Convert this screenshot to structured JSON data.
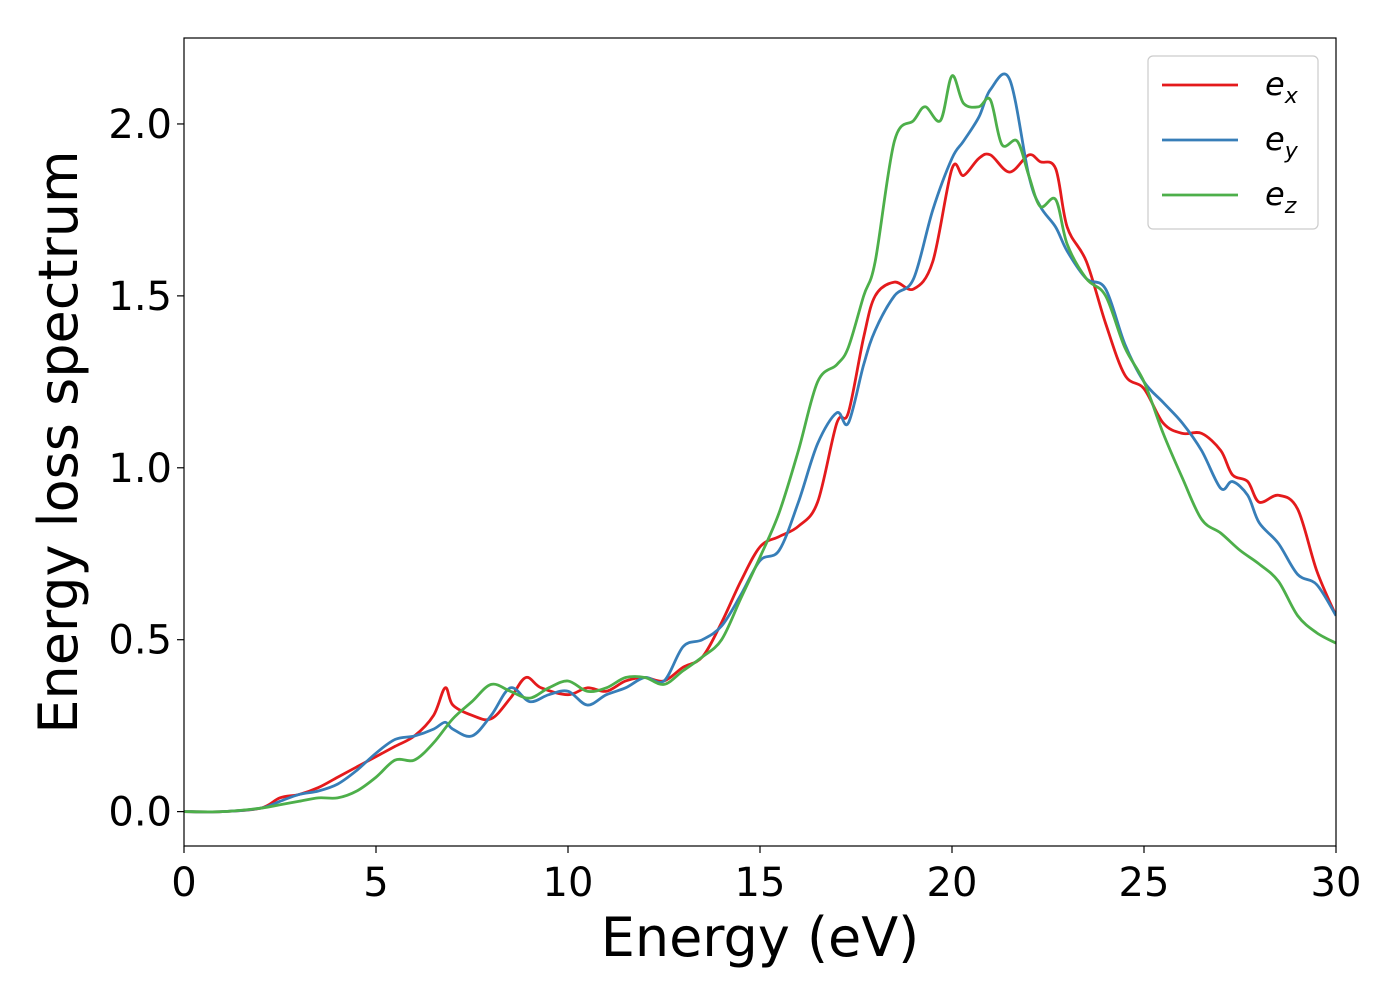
{
  "chart_data": {
    "type": "line",
    "title": "",
    "xlabel": "Energy (eV)",
    "ylabel": "Energy loss spectrum",
    "xlim": [
      0,
      30
    ],
    "ylim": [
      -0.1,
      2.25
    ],
    "xticks": [
      0,
      5,
      10,
      15,
      20,
      25,
      30
    ],
    "xtick_labels": [
      "0",
      "5",
      "10",
      "15",
      "20",
      "25",
      "30"
    ],
    "yticks": [
      0.0,
      0.5,
      1.0,
      1.5,
      2.0
    ],
    "ytick_labels": [
      "0.0",
      "0.5",
      "1.0",
      "1.5",
      "2.0"
    ],
    "grid": false,
    "legend_position": "top-right",
    "series": [
      {
        "name": "e_x",
        "label_base": "e",
        "label_sub": "x",
        "color": "#e41a1c",
        "x": [
          0,
          1,
          2,
          2.5,
          3,
          3.5,
          4,
          4.5,
          5,
          5.5,
          6,
          6.5,
          6.8,
          7,
          7.5,
          8,
          8.5,
          8.9,
          9.3,
          10,
          10.5,
          11,
          11.5,
          12,
          12.5,
          13,
          13.5,
          14,
          14.5,
          15,
          15.5,
          16,
          16.5,
          17,
          17.3,
          17.7,
          18,
          18.5,
          19,
          19.5,
          20,
          20.3,
          20.7,
          21,
          21.5,
          22,
          22.3,
          22.7,
          23,
          23.5,
          24,
          24.5,
          25,
          25.5,
          26,
          26.5,
          27,
          27.3,
          27.7,
          28,
          28.5,
          29,
          29.5,
          30
        ],
        "y": [
          0,
          0,
          0.01,
          0.04,
          0.05,
          0.07,
          0.1,
          0.13,
          0.16,
          0.19,
          0.22,
          0.28,
          0.36,
          0.31,
          0.28,
          0.27,
          0.33,
          0.39,
          0.36,
          0.34,
          0.36,
          0.35,
          0.38,
          0.39,
          0.38,
          0.42,
          0.45,
          0.55,
          0.67,
          0.77,
          0.8,
          0.83,
          0.9,
          1.13,
          1.16,
          1.38,
          1.5,
          1.54,
          1.52,
          1.6,
          1.87,
          1.85,
          1.9,
          1.91,
          1.86,
          1.91,
          1.89,
          1.87,
          1.7,
          1.6,
          1.42,
          1.27,
          1.23,
          1.13,
          1.1,
          1.1,
          1.05,
          0.98,
          0.96,
          0.9,
          0.92,
          0.88,
          0.7,
          0.57
        ]
      },
      {
        "name": "e_y",
        "label_base": "e",
        "label_sub": "y",
        "color": "#377eb8",
        "x": [
          0,
          1,
          2,
          2.5,
          3,
          3.5,
          4,
          4.5,
          5,
          5.5,
          6,
          6.5,
          6.8,
          7,
          7.5,
          8,
          8.5,
          9,
          9.5,
          10,
          10.5,
          11,
          11.5,
          12,
          12.5,
          13,
          13.5,
          14,
          14.5,
          15,
          15.5,
          16,
          16.5,
          17,
          17.3,
          17.7,
          18,
          18.5,
          19,
          19.5,
          20,
          20.3,
          20.7,
          21,
          21.5,
          22,
          22.3,
          22.7,
          23,
          23.5,
          24,
          24.5,
          25,
          25.5,
          26,
          26.5,
          27,
          27.3,
          27.7,
          28,
          28.5,
          29,
          29.5,
          30
        ],
        "y": [
          0,
          0,
          0.01,
          0.03,
          0.05,
          0.06,
          0.08,
          0.12,
          0.17,
          0.21,
          0.22,
          0.24,
          0.26,
          0.24,
          0.22,
          0.28,
          0.36,
          0.32,
          0.34,
          0.35,
          0.31,
          0.34,
          0.36,
          0.39,
          0.38,
          0.48,
          0.5,
          0.54,
          0.63,
          0.73,
          0.76,
          0.9,
          1.07,
          1.16,
          1.13,
          1.3,
          1.4,
          1.5,
          1.55,
          1.75,
          1.9,
          1.95,
          2.02,
          2.1,
          2.13,
          1.85,
          1.76,
          1.7,
          1.63,
          1.55,
          1.52,
          1.36,
          1.25,
          1.19,
          1.13,
          1.05,
          0.94,
          0.96,
          0.92,
          0.84,
          0.78,
          0.69,
          0.66,
          0.57
        ]
      },
      {
        "name": "e_z",
        "label_base": "e",
        "label_sub": "z",
        "color": "#4daf4a",
        "x": [
          0,
          1,
          2,
          2.5,
          3,
          3.5,
          4,
          4.5,
          5,
          5.5,
          6,
          6.5,
          7,
          7.5,
          8,
          8.5,
          9,
          9.5,
          10,
          10.5,
          11,
          11.5,
          12,
          12.5,
          13,
          13.5,
          14,
          14.5,
          15,
          15.5,
          16,
          16.5,
          17,
          17.3,
          17.7,
          18,
          18.5,
          19,
          19.3,
          19.7,
          20,
          20.3,
          20.7,
          21,
          21.3,
          21.7,
          22,
          22.3,
          22.7,
          23,
          23.5,
          24,
          24.5,
          25,
          25.5,
          26,
          26.5,
          27,
          27.5,
          28,
          28.5,
          29,
          29.5,
          30
        ],
        "y": [
          0,
          0,
          0.01,
          0.02,
          0.03,
          0.04,
          0.04,
          0.06,
          0.1,
          0.15,
          0.15,
          0.2,
          0.27,
          0.32,
          0.37,
          0.35,
          0.33,
          0.36,
          0.38,
          0.35,
          0.36,
          0.39,
          0.39,
          0.37,
          0.41,
          0.45,
          0.5,
          0.62,
          0.74,
          0.87,
          1.05,
          1.25,
          1.3,
          1.35,
          1.5,
          1.6,
          1.95,
          2.01,
          2.05,
          2.01,
          2.14,
          2.06,
          2.05,
          2.07,
          1.94,
          1.95,
          1.85,
          1.76,
          1.78,
          1.65,
          1.55,
          1.5,
          1.35,
          1.25,
          1.1,
          0.97,
          0.85,
          0.81,
          0.76,
          0.72,
          0.67,
          0.57,
          0.52,
          0.49
        ]
      }
    ]
  }
}
